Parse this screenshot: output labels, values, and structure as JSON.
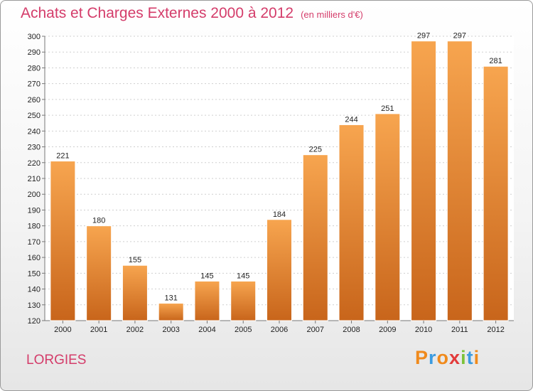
{
  "chart_data": {
    "type": "bar",
    "title": "Achats et Charges Externes 2000 à 2012",
    "subtitle": "(en milliers d'€)",
    "categories": [
      "2000",
      "2001",
      "2002",
      "2003",
      "2004",
      "2005",
      "2006",
      "2007",
      "2008",
      "2009",
      "2010",
      "2011",
      "2012"
    ],
    "values": [
      221,
      180,
      155,
      131,
      145,
      145,
      184,
      225,
      244,
      251,
      297,
      297,
      281
    ],
    "ylim": [
      120,
      300
    ],
    "yticks": [
      120,
      130,
      140,
      150,
      160,
      170,
      180,
      190,
      200,
      210,
      220,
      230,
      240,
      250,
      260,
      270,
      280,
      290,
      300
    ],
    "grid": true,
    "bar_color_top": "#f7a54f",
    "bar_color_bottom": "#c8651b",
    "data_labels": true
  },
  "footer": {
    "commune": "LORGIES",
    "brand_letters": [
      "P",
      "r",
      "o",
      "x",
      "i",
      "t",
      "i"
    ],
    "brand_colors": [
      "#f08a1c",
      "#3c9be0",
      "#f08a1c",
      "#e23a3a",
      "#7cc23a",
      "#3c9be0",
      "#f08a1c"
    ]
  },
  "colors": {
    "accent": "#d43c6a"
  }
}
